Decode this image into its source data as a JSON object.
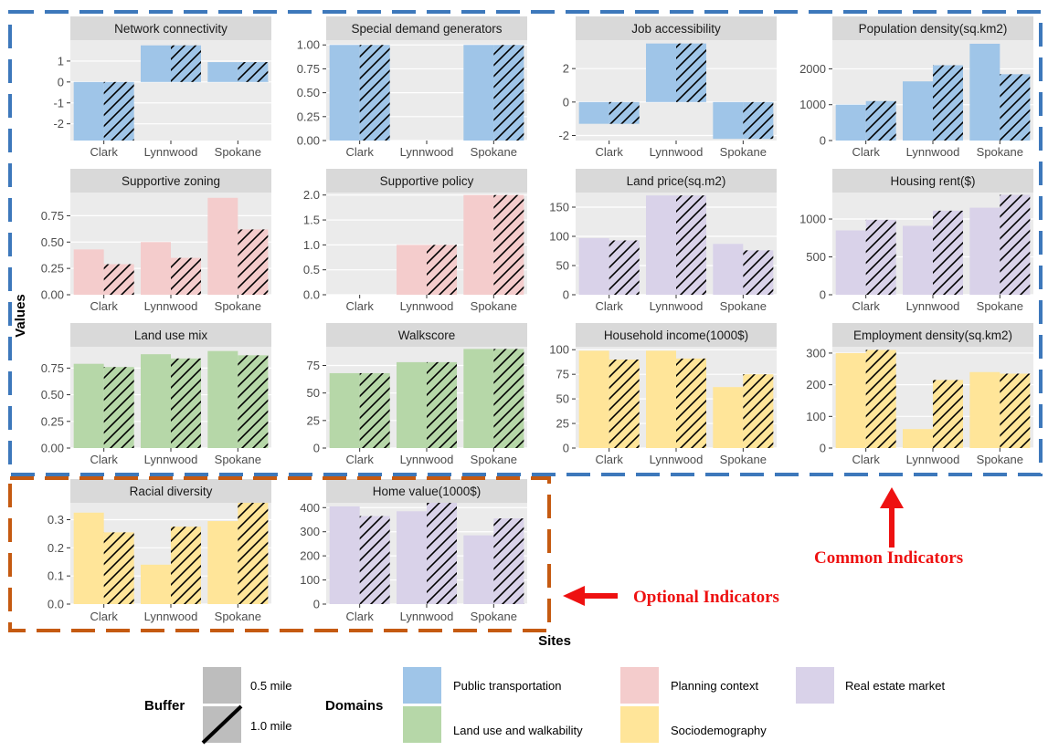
{
  "colors": {
    "public_transportation": "#9fc5e8",
    "planning_context": "#f4cccc",
    "real_estate_market": "#d9d2e9",
    "land_use_and_walkability": "#b6d7a8",
    "sociodemography": "#ffe599",
    "common_box": "#3d78bb",
    "optional_box": "#c55a11",
    "annotation": "#ee1111",
    "panel_bg": "#ebebeb",
    "strip_bg": "#d9d9d9"
  },
  "axes": {
    "xlabel": "Sites",
    "ylabel": "Values"
  },
  "annotations": {
    "common": "Common Indicators",
    "optional": "Optional Indicators"
  },
  "legend": {
    "buffer_title": "Buffer",
    "buffer_items": [
      "0.5 mile",
      "1.0 mile"
    ],
    "domains_title": "Domains",
    "domain_items": [
      {
        "label": "Public transportation",
        "color_key": "public_transportation"
      },
      {
        "label": "Planning context",
        "color_key": "planning_context"
      },
      {
        "label": "Real estate market",
        "color_key": "real_estate_market"
      },
      {
        "label": "Land use and walkability",
        "color_key": "land_use_and_walkability"
      },
      {
        "label": "Sociodemography",
        "color_key": "sociodemography"
      }
    ]
  },
  "chart_data": [
    {
      "type": "bar",
      "title": "Network connectivity",
      "domain": "public_transportation",
      "categories": [
        "Clark",
        "Lynnwood",
        "Spokane"
      ],
      "ylim": [
        -2.8,
        2.0
      ],
      "ticks": [
        -2,
        -1,
        0,
        1
      ],
      "series": [
        {
          "name": "0.5 mile",
          "values": [
            -2.8,
            1.75,
            0.95
          ]
        },
        {
          "name": "1.0 mile",
          "values": [
            -2.8,
            1.75,
            0.95
          ]
        }
      ]
    },
    {
      "type": "bar",
      "title": "Special demand generators",
      "domain": "public_transportation",
      "categories": [
        "Clark",
        "Lynnwood",
        "Spokane"
      ],
      "ylim": [
        0,
        1.05
      ],
      "ticks": [
        "0.00",
        "0.25",
        "0.50",
        "0.75",
        "1.00"
      ],
      "series": [
        {
          "name": "0.5 mile",
          "values": [
            1,
            0,
            1
          ]
        },
        {
          "name": "1.0 mile",
          "values": [
            1,
            0,
            1
          ]
        }
      ]
    },
    {
      "type": "bar",
      "title": "Job accessibility",
      "domain": "public_transportation",
      "categories": [
        "Clark",
        "Lynnwood",
        "Spokane"
      ],
      "ylim": [
        -2.3,
        3.7
      ],
      "ticks": [
        -2,
        0,
        2
      ],
      "series": [
        {
          "name": "0.5 mile",
          "values": [
            -1.3,
            3.5,
            -2.2
          ]
        },
        {
          "name": "1.0 mile",
          "values": [
            -1.3,
            3.5,
            -2.2
          ]
        }
      ]
    },
    {
      "type": "bar",
      "title": "Population density(sq.km2)",
      "domain": "public_transportation",
      "categories": [
        "Clark",
        "Lynnwood",
        "Spokane"
      ],
      "ylim": [
        0,
        2800
      ],
      "ticks": [
        0,
        1000,
        2000
      ],
      "series": [
        {
          "name": "0.5 mile",
          "values": [
            1000,
            1650,
            2700
          ]
        },
        {
          "name": "1.0 mile",
          "values": [
            1100,
            2100,
            1850
          ]
        }
      ]
    },
    {
      "type": "bar",
      "title": "Supportive zoning",
      "domain": "planning_context",
      "categories": [
        "Clark",
        "Lynnwood",
        "Spokane"
      ],
      "ylim": [
        0,
        0.97
      ],
      "ticks": [
        "0.00",
        "0.25",
        "0.50",
        "0.75"
      ],
      "series": [
        {
          "name": "0.5 mile",
          "values": [
            0.43,
            0.5,
            0.92
          ]
        },
        {
          "name": "1.0 mile",
          "values": [
            0.29,
            0.35,
            0.62
          ]
        }
      ]
    },
    {
      "type": "bar",
      "title": "Supportive policy",
      "domain": "planning_context",
      "categories": [
        "Clark",
        "Lynnwood",
        "Spokane"
      ],
      "ylim": [
        0,
        2.05
      ],
      "ticks": [
        "0.0",
        "0.5",
        "1.0",
        "1.5",
        "2.0"
      ],
      "series": [
        {
          "name": "0.5 mile",
          "values": [
            0,
            1,
            2
          ]
        },
        {
          "name": "1.0 mile",
          "values": [
            0,
            1,
            2
          ]
        }
      ]
    },
    {
      "type": "bar",
      "title": "Land price(sq.m2)",
      "domain": "real_estate_market",
      "categories": [
        "Clark",
        "Lynnwood",
        "Spokane"
      ],
      "ylim": [
        0,
        175
      ],
      "ticks": [
        0,
        50,
        100,
        150
      ],
      "series": [
        {
          "name": "0.5 mile",
          "values": [
            97,
            170,
            87
          ]
        },
        {
          "name": "1.0 mile",
          "values": [
            93,
            170,
            76
          ]
        }
      ]
    },
    {
      "type": "bar",
      "title": "Housing rent($)",
      "domain": "real_estate_market",
      "categories": [
        "Clark",
        "Lynnwood",
        "Spokane"
      ],
      "ylim": [
        0,
        1350
      ],
      "ticks": [
        0,
        500,
        1000
      ],
      "series": [
        {
          "name": "0.5 mile",
          "values": [
            850,
            910,
            1150
          ]
        },
        {
          "name": "1.0 mile",
          "values": [
            990,
            1110,
            1320
          ]
        }
      ]
    },
    {
      "type": "bar",
      "title": "Land use mix",
      "domain": "land_use_and_walkability",
      "categories": [
        "Clark",
        "Lynnwood",
        "Spokane"
      ],
      "ylim": [
        0,
        0.95
      ],
      "ticks": [
        "0.00",
        "0.25",
        "0.50",
        "0.75"
      ],
      "series": [
        {
          "name": "0.5 mile",
          "values": [
            0.79,
            0.88,
            0.91
          ]
        },
        {
          "name": "1.0 mile",
          "values": [
            0.76,
            0.84,
            0.87
          ]
        }
      ]
    },
    {
      "type": "bar",
      "title": "Walkscore",
      "domain": "land_use_and_walkability",
      "categories": [
        "Clark",
        "Lynnwood",
        "Spokane"
      ],
      "ylim": [
        0,
        92
      ],
      "ticks": [
        0,
        25,
        50,
        75
      ],
      "series": [
        {
          "name": "0.5 mile",
          "values": [
            68,
            78,
            90
          ]
        },
        {
          "name": "1.0 mile",
          "values": [
            68,
            78,
            90
          ]
        }
      ]
    },
    {
      "type": "bar",
      "title": "Household income(1000$)",
      "domain": "sociodemography",
      "categories": [
        "Clark",
        "Lynnwood",
        "Spokane"
      ],
      "ylim": [
        0,
        103
      ],
      "ticks": [
        0,
        25,
        50,
        75,
        100
      ],
      "series": [
        {
          "name": "0.5 mile",
          "values": [
            99,
            99,
            62
          ]
        },
        {
          "name": "1.0 mile",
          "values": [
            90,
            91,
            75
          ]
        }
      ]
    },
    {
      "type": "bar",
      "title": "Employment density(sq.km2)",
      "domain": "sociodemography",
      "categories": [
        "Clark",
        "Lynnwood",
        "Spokane"
      ],
      "ylim": [
        0,
        320
      ],
      "ticks": [
        0,
        100,
        200,
        300
      ],
      "series": [
        {
          "name": "0.5 mile",
          "values": [
            300,
            60,
            240
          ]
        },
        {
          "name": "1.0 mile",
          "values": [
            310,
            215,
            235
          ]
        }
      ]
    },
    {
      "type": "bar",
      "title": "Racial diversity",
      "domain": "sociodemography",
      "categories": [
        "Clark",
        "Lynnwood",
        "Spokane"
      ],
      "ylim": [
        0,
        0.36
      ],
      "ticks": [
        "0.0",
        "0.1",
        "0.2",
        "0.3"
      ],
      "series": [
        {
          "name": "0.5 mile",
          "values": [
            0.325,
            0.14,
            0.295
          ]
        },
        {
          "name": "1.0 mile",
          "values": [
            0.255,
            0.275,
            0.36
          ]
        }
      ]
    },
    {
      "type": "bar",
      "title": "Home value(1000$)",
      "domain": "real_estate_market",
      "categories": [
        "Clark",
        "Lynnwood",
        "Spokane"
      ],
      "ylim": [
        0,
        420
      ],
      "ticks": [
        0,
        100,
        200,
        300,
        400
      ],
      "series": [
        {
          "name": "0.5 mile",
          "values": [
            405,
            385,
            285
          ]
        },
        {
          "name": "1.0 mile",
          "values": [
            365,
            420,
            355
          ]
        }
      ]
    }
  ]
}
